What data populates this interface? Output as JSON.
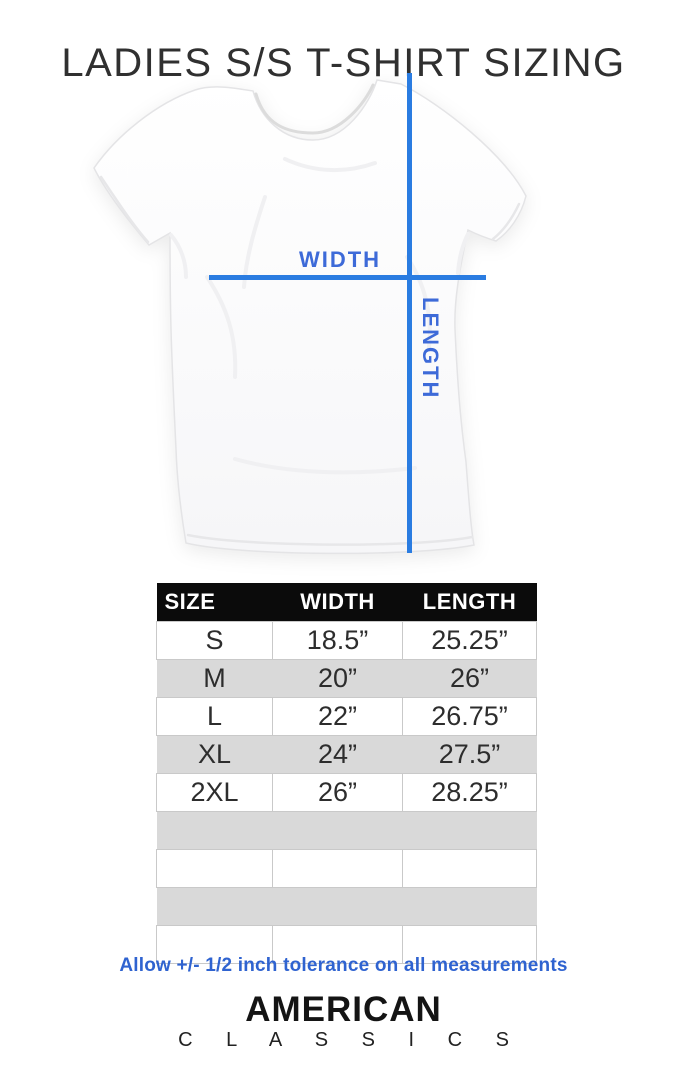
{
  "page": {
    "title": "LADIES S/S T-SHIRT SIZING"
  },
  "diagram": {
    "width_label": "WIDTH",
    "length_label": "LENGTH",
    "line_color": "#2a7ce1",
    "label_color": "#3d6ad8"
  },
  "size_table": {
    "columns": [
      "SIZE",
      "WIDTH",
      "LENGTH"
    ],
    "rows": [
      {
        "size": "S",
        "width": "18.5”",
        "length": "25.25”"
      },
      {
        "size": "M",
        "width": "20”",
        "length": "26”"
      },
      {
        "size": "L",
        "width": "22”",
        "length": "26.75”"
      },
      {
        "size": "XL",
        "width": "24”",
        "length": "27.5”"
      },
      {
        "size": "2XL",
        "width": "26”",
        "length": "28.25”"
      }
    ],
    "empty_row_count": 4,
    "header_bg": "#0b0b0b",
    "alt_row_bg": "#d9d9d9"
  },
  "tolerance_note": "Allow +/- 1/2 inch tolerance on all measurements",
  "brand": {
    "line1": "AMERICAN",
    "line2": "C L A S S I C S"
  }
}
